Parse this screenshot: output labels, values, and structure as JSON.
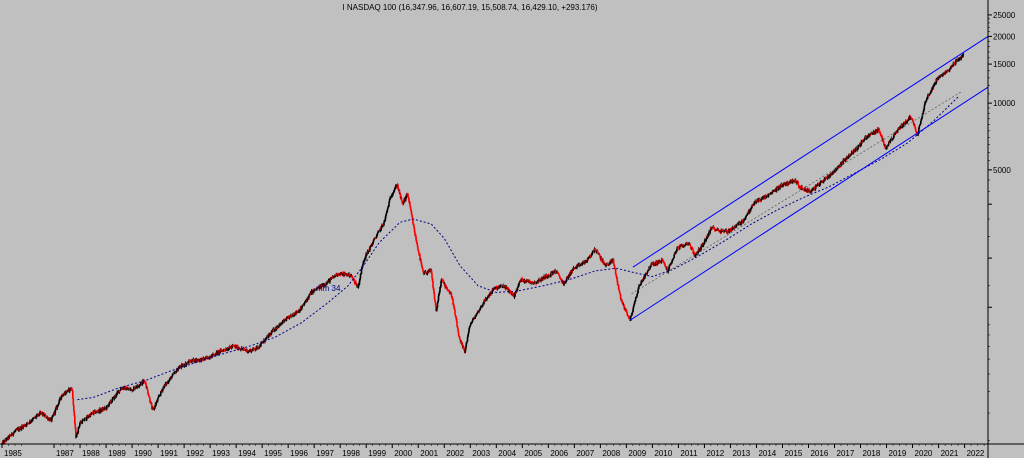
{
  "chart_data": {
    "type": "candlestick",
    "title": "I NASDAQ 100 (16,347.96, 16,607.19, 15,508.74, 16,429.10, +293.176)",
    "y_scale": "log",
    "ylim": [
      290,
      28000
    ],
    "xlim": [
      1985.0,
      2022.9
    ],
    "y_ticks": [
      {
        "value": 25000,
        "label": "25000"
      },
      {
        "value": 20000,
        "label": "20000"
      },
      {
        "value": 15000,
        "label": "15000"
      },
      {
        "value": 10000,
        "label": "10000"
      },
      {
        "value": 5000,
        "label": "5000"
      },
      {
        "value": 3500,
        "label": ""
      },
      {
        "value": 2000,
        "label": ""
      },
      {
        "value": 1200,
        "label": ""
      }
    ],
    "x_ticks": [
      "1985",
      "1987",
      "1988",
      "1989",
      "1990",
      "1991",
      "1992",
      "1993",
      "1994",
      "1995",
      "1996",
      "1997",
      "1998",
      "1999",
      "2000",
      "2001",
      "2002",
      "2003",
      "2004",
      "2005",
      "2006",
      "2007",
      "2008",
      "2009",
      "2010",
      "2011",
      "2012",
      "2013",
      "2014",
      "2015",
      "2016",
      "2017",
      "2018",
      "2019",
      "2020",
      "2021",
      "2022"
    ],
    "price_path": [
      [
        1985.0,
        290
      ],
      [
        1985.5,
        330
      ],
      [
        1986.0,
        360
      ],
      [
        1986.5,
        400
      ],
      [
        1986.9,
        370
      ],
      [
        1987.3,
        480
      ],
      [
        1987.7,
        520
      ],
      [
        1987.85,
        310
      ],
      [
        1988.0,
        360
      ],
      [
        1988.5,
        400
      ],
      [
        1989.0,
        420
      ],
      [
        1989.6,
        520
      ],
      [
        1990.0,
        510
      ],
      [
        1990.5,
        560
      ],
      [
        1990.8,
        410
      ],
      [
        1991.2,
        520
      ],
      [
        1991.8,
        640
      ],
      [
        1992.3,
        690
      ],
      [
        1992.8,
        700
      ],
      [
        1993.4,
        760
      ],
      [
        1993.9,
        800
      ],
      [
        1994.5,
        760
      ],
      [
        1994.9,
        800
      ],
      [
        1995.5,
        960
      ],
      [
        1995.9,
        1050
      ],
      [
        1996.5,
        1180
      ],
      [
        1996.9,
        1400
      ],
      [
        1997.5,
        1550
      ],
      [
        1997.9,
        1700
      ],
      [
        1998.4,
        1680
      ],
      [
        1998.7,
        1480
      ],
      [
        1998.9,
        1950
      ],
      [
        1999.3,
        2400
      ],
      [
        1999.7,
        2900
      ],
      [
        1999.95,
        3800
      ],
      [
        2000.2,
        4300
      ],
      [
        2000.4,
        3500
      ],
      [
        2000.6,
        3900
      ],
      [
        2000.9,
        2500
      ],
      [
        2001.2,
        1700
      ],
      [
        2001.5,
        1750
      ],
      [
        2001.7,
        1150
      ],
      [
        2001.9,
        1600
      ],
      [
        2002.3,
        1350
      ],
      [
        2002.6,
        850
      ],
      [
        2002.8,
        760
      ],
      [
        2003.0,
        1000
      ],
      [
        2003.5,
        1250
      ],
      [
        2003.9,
        1450
      ],
      [
        2004.3,
        1500
      ],
      [
        2004.7,
        1350
      ],
      [
        2004.95,
        1600
      ],
      [
        2005.5,
        1550
      ],
      [
        2005.9,
        1650
      ],
      [
        2006.3,
        1750
      ],
      [
        2006.6,
        1530
      ],
      [
        2006.95,
        1780
      ],
      [
        2007.5,
        1950
      ],
      [
        2007.8,
        2200
      ],
      [
        2008.2,
        1850
      ],
      [
        2008.5,
        1950
      ],
      [
        2008.8,
        1300
      ],
      [
        2009.15,
        1050
      ],
      [
        2009.5,
        1500
      ],
      [
        2009.95,
        1860
      ],
      [
        2010.4,
        1950
      ],
      [
        2010.6,
        1750
      ],
      [
        2010.95,
        2200
      ],
      [
        2011.4,
        2350
      ],
      [
        2011.65,
        2050
      ],
      [
        2011.95,
        2300
      ],
      [
        2012.3,
        2750
      ],
      [
        2012.6,
        2650
      ],
      [
        2012.95,
        2650
      ],
      [
        2013.5,
        2950
      ],
      [
        2013.95,
        3580
      ],
      [
        2014.5,
        3850
      ],
      [
        2014.95,
        4250
      ],
      [
        2015.5,
        4500
      ],
      [
        2015.7,
        4150
      ],
      [
        2016.1,
        4000
      ],
      [
        2016.5,
        4400
      ],
      [
        2016.95,
        4870
      ],
      [
        2017.5,
        5700
      ],
      [
        2017.95,
        6400
      ],
      [
        2018.2,
        7000
      ],
      [
        2018.7,
        7600
      ],
      [
        2018.97,
        6300
      ],
      [
        2019.5,
        7700
      ],
      [
        2019.95,
        8700
      ],
      [
        2020.2,
        7200
      ],
      [
        2020.5,
        10200
      ],
      [
        2020.95,
        12800
      ],
      [
        2021.3,
        13800
      ],
      [
        2021.7,
        15500
      ],
      [
        2021.95,
        16430
      ]
    ],
    "moving_average": {
      "name": "mm 34",
      "path": [
        [
          1987.9,
          460
        ],
        [
          1988.5,
          470
        ],
        [
          1989.5,
          520
        ],
        [
          1990.5,
          560
        ],
        [
          1991.5,
          620
        ],
        [
          1992.5,
          680
        ],
        [
          1993.5,
          740
        ],
        [
          1994.5,
          800
        ],
        [
          1995.5,
          880
        ],
        [
          1996.5,
          1020
        ],
        [
          1997.5,
          1250
        ],
        [
          1998.3,
          1500
        ],
        [
          1998.9,
          1850
        ],
        [
          1999.5,
          2350
        ],
        [
          2000.3,
          2900
        ],
        [
          2000.8,
          3000
        ],
        [
          2001.5,
          2850
        ],
        [
          2002.0,
          2450
        ],
        [
          2002.6,
          1850
        ],
        [
          2003.3,
          1500
        ],
        [
          2004.0,
          1400
        ],
        [
          2004.8,
          1420
        ],
        [
          2005.8,
          1500
        ],
        [
          2006.8,
          1600
        ],
        [
          2007.8,
          1750
        ],
        [
          2008.6,
          1800
        ],
        [
          2009.3,
          1720
        ],
        [
          2010.0,
          1650
        ],
        [
          2010.8,
          1780
        ],
        [
          2011.8,
          2050
        ],
        [
          2012.8,
          2400
        ],
        [
          2013.8,
          2850
        ],
        [
          2014.8,
          3300
        ],
        [
          2015.8,
          3750
        ],
        [
          2016.8,
          4200
        ],
        [
          2017.8,
          4850
        ],
        [
          2018.8,
          5600
        ],
        [
          2019.8,
          6600
        ],
        [
          2020.8,
          8300
        ],
        [
          2021.8,
          10800
        ]
      ]
    },
    "channel": {
      "upper": [
        [
          2009.25,
          1820
        ],
        [
          2022.9,
          20000
        ]
      ],
      "lower": [
        [
          2009.15,
          1050
        ],
        [
          2022.9,
          11800
        ]
      ],
      "mid": [
        [
          2009.2,
          1380
        ],
        [
          2021.9,
          11300
        ]
      ]
    },
    "colors": {
      "background": "#c0c0c0",
      "candle_up": "#000000",
      "candle_down": "#ff0000",
      "moving_average": "#00008b",
      "channel": "#0000ff",
      "mid_line": "#555555"
    }
  }
}
